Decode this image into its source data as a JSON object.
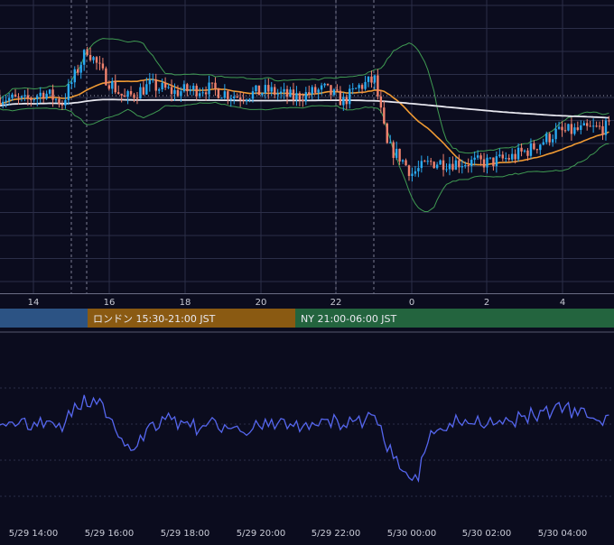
{
  "colors": {
    "background": "#0b0c1e",
    "grid": "#2b2e48",
    "candle_up": "#29a9f0",
    "candle_down": "#f0826e",
    "bollinger": "#3f9a52",
    "ma_short": "#ef9a33",
    "ma_long": "#e6e6ee",
    "oscillator": "#5566ee",
    "session_tokyo": "#2c5384",
    "session_london": "#8a5a12",
    "session_ny": "#23643e",
    "axis_text": "#c9cbd6"
  },
  "sessions": [
    {
      "name": "tokyo",
      "label": ""
    },
    {
      "name": "london",
      "label": "ロンドン 15:30-21:00 JST"
    },
    {
      "name": "ny",
      "label": "NY 21:00-06:00 JST"
    }
  ],
  "chart_data": [
    {
      "type": "candlestick",
      "title": "",
      "x_hour_ticks": [
        "14",
        "16",
        "18",
        "20",
        "22",
        "0",
        "2",
        "4"
      ],
      "x_range_hours": [
        "5/29 13:00",
        "5/30 05:25"
      ],
      "interval_minutes": 5,
      "price_profile": [
        {
          "t": 0,
          "v": 0.22
        },
        {
          "t": 8,
          "v": 0.05
        },
        {
          "t": 14,
          "v": 0.4
        },
        {
          "t": 20,
          "v": 0.0
        },
        {
          "t": 28,
          "v": 2.0
        },
        {
          "t": 33,
          "v": 1.05
        },
        {
          "t": 40,
          "v": 0.15
        },
        {
          "t": 48,
          "v": 0.65
        },
        {
          "t": 56,
          "v": 0.4
        },
        {
          "t": 66,
          "v": 0.55
        },
        {
          "t": 76,
          "v": 0.25
        },
        {
          "t": 86,
          "v": 0.45
        },
        {
          "t": 94,
          "v": 0.2
        },
        {
          "t": 104,
          "v": 0.5
        },
        {
          "t": 110,
          "v": 0.05
        },
        {
          "t": 115,
          "v": 0.6
        },
        {
          "t": 120,
          "v": 0.85
        },
        {
          "t": 124,
          "v": -1.6
        },
        {
          "t": 128,
          "v": -2.0
        },
        {
          "t": 132,
          "v": -2.6
        },
        {
          "t": 138,
          "v": -2.2
        },
        {
          "t": 150,
          "v": -2.2
        },
        {
          "t": 157,
          "v": -2.2
        },
        {
          "t": 164,
          "v": -2.0
        },
        {
          "t": 170,
          "v": -1.7
        },
        {
          "t": 178,
          "v": -1.1
        },
        {
          "t": 195,
          "v": -0.9
        }
      ],
      "bollinger_band_sigma": 2,
      "moving_averages": [
        "short",
        "long"
      ]
    },
    {
      "type": "line",
      "title": "",
      "x_tick_labels": [
        "5/29 14:00",
        "5/29 16:00",
        "5/29 18:00",
        "5/29 20:00",
        "5/29 22:00",
        "5/30 00:00",
        "5/30 02:00",
        "5/30 04:00"
      ],
      "series": [
        {
          "values_profile": "oscillator"
        }
      ]
    }
  ]
}
